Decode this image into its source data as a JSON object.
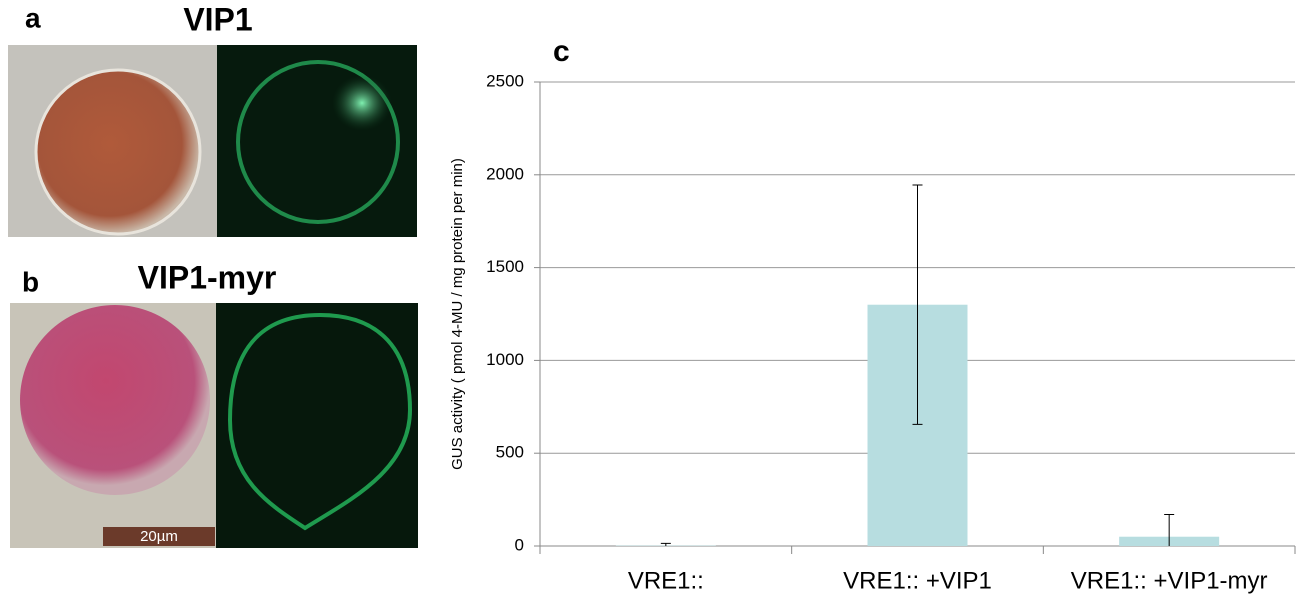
{
  "panels": [
    {
      "label": "a",
      "title": "VIP1"
    },
    {
      "label": "b",
      "title": "VIP1-myr",
      "scale_bar": "20µm"
    }
  ],
  "chart_data": {
    "type": "bar",
    "label": "c",
    "y_label": "GUS activity ( pmol 4-MU / mg protein per min)",
    "categories": [
      "VRE1::",
      "VRE1:: +VIP1",
      "VRE1:: +VIP1-myr"
    ],
    "values": [
      2,
      1300,
      50
    ],
    "errors": [
      12,
      645,
      120
    ],
    "color": "#b7dde0",
    "ylim": [
      0,
      2500
    ],
    "yticks": [
      0,
      500,
      1000,
      1500,
      2000,
      2500
    ],
    "grid": true
  }
}
